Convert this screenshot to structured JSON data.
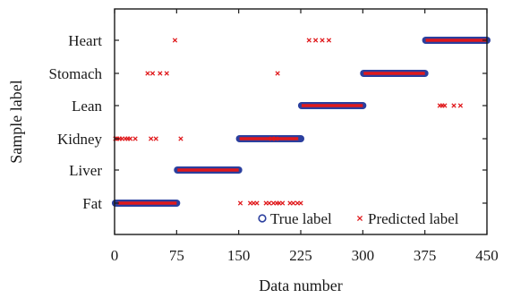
{
  "chart_data": {
    "type": "scatter",
    "xlabel": "Data number",
    "ylabel": "Sample label",
    "xlim": [
      0,
      450
    ],
    "x_ticks": [
      "0",
      "75",
      "150",
      "225",
      "300",
      "375",
      "450"
    ],
    "categories": [
      "Fat",
      "Liver",
      "Kidney",
      "Lean",
      "Stomach",
      "Heart"
    ],
    "grid": false,
    "legend_position": "bottom-right",
    "colors": {
      "true_label": "#2b3f9e",
      "predicted_label": "#e0191c",
      "axis": "#1a1a1a"
    },
    "series": [
      {
        "name": "True label",
        "marker": "open-circle",
        "segments": [
          {
            "category": "Fat",
            "x_range": [
              1,
              75
            ]
          },
          {
            "category": "Liver",
            "x_range": [
              76,
              150
            ]
          },
          {
            "category": "Kidney",
            "x_range": [
              151,
              225
            ]
          },
          {
            "category": "Lean",
            "x_range": [
              226,
              300
            ]
          },
          {
            "category": "Stomach",
            "x_range": [
              301,
              375
            ]
          },
          {
            "category": "Heart",
            "x_range": [
              376,
              450
            ]
          }
        ]
      },
      {
        "name": "Predicted label",
        "marker": "x",
        "dense_segments": [
          {
            "category": "Fat",
            "x_range": [
              4,
              75
            ]
          },
          {
            "category": "Liver",
            "x_range": [
              76,
              150
            ]
          },
          {
            "category": "Kidney",
            "x_range": [
              151,
              222
            ]
          },
          {
            "category": "Lean",
            "x_range": [
              226,
              300
            ]
          },
          {
            "category": "Stomach",
            "x_range": [
              301,
              375
            ]
          },
          {
            "category": "Heart",
            "x_range": [
              376,
              450
            ]
          }
        ],
        "outliers": [
          {
            "x": 1,
            "y": "Kidney"
          },
          {
            "x": 3,
            "y": "Kidney"
          },
          {
            "x": 6,
            "y": "Kidney"
          },
          {
            "x": 9,
            "y": "Kidney"
          },
          {
            "x": 13,
            "y": "Kidney"
          },
          {
            "x": 16,
            "y": "Kidney"
          },
          {
            "x": 19,
            "y": "Kidney"
          },
          {
            "x": 25,
            "y": "Kidney"
          },
          {
            "x": 44,
            "y": "Kidney"
          },
          {
            "x": 50,
            "y": "Kidney"
          },
          {
            "x": 80,
            "y": "Kidney"
          },
          {
            "x": 190,
            "y": "Kidney"
          },
          {
            "x": 195,
            "y": "Kidney"
          },
          {
            "x": 40,
            "y": "Stomach"
          },
          {
            "x": 46,
            "y": "Stomach"
          },
          {
            "x": 55,
            "y": "Stomach"
          },
          {
            "x": 63,
            "y": "Stomach"
          },
          {
            "x": 197,
            "y": "Stomach"
          },
          {
            "x": 73,
            "y": "Heart"
          },
          {
            "x": 235,
            "y": "Heart"
          },
          {
            "x": 243,
            "y": "Heart"
          },
          {
            "x": 251,
            "y": "Heart"
          },
          {
            "x": 259,
            "y": "Heart"
          },
          {
            "x": 152,
            "y": "Fat"
          },
          {
            "x": 164,
            "y": "Fat"
          },
          {
            "x": 168,
            "y": "Fat"
          },
          {
            "x": 172,
            "y": "Fat"
          },
          {
            "x": 183,
            "y": "Fat"
          },
          {
            "x": 187,
            "y": "Fat"
          },
          {
            "x": 192,
            "y": "Fat"
          },
          {
            "x": 196,
            "y": "Fat"
          },
          {
            "x": 199,
            "y": "Fat"
          },
          {
            "x": 203,
            "y": "Fat"
          },
          {
            "x": 212,
            "y": "Fat"
          },
          {
            "x": 216,
            "y": "Fat"
          },
          {
            "x": 221,
            "y": "Fat"
          },
          {
            "x": 225,
            "y": "Fat"
          },
          {
            "x": 393,
            "y": "Lean"
          },
          {
            "x": 396,
            "y": "Lean"
          },
          {
            "x": 399,
            "y": "Lean"
          },
          {
            "x": 410,
            "y": "Lean"
          },
          {
            "x": 418,
            "y": "Lean"
          }
        ]
      }
    ]
  }
}
